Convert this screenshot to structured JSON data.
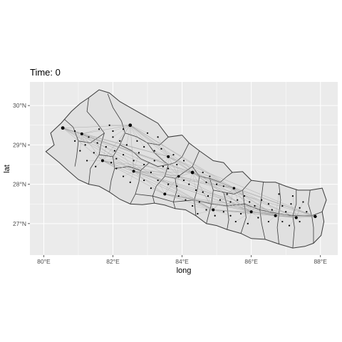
{
  "chart_data": {
    "type": "scatter",
    "title": "Time: 0",
    "xlabel": "long",
    "ylabel": "lat",
    "xlim": [
      79.6,
      88.5
    ],
    "ylim": [
      26.2,
      30.6
    ],
    "x_ticks": [
      80,
      82,
      84,
      86,
      88
    ],
    "x_tick_labels": [
      "80°E",
      "82°E",
      "84°E",
      "86°E",
      "88°E"
    ],
    "y_ticks": [
      27,
      28,
      29,
      30
    ],
    "y_tick_labels": [
      "27°N",
      "28°N",
      "29°N",
      "30°N"
    ],
    "grid": true,
    "legend": "none",
    "colors": {
      "panel": "#ebebeb",
      "grid_major": "#ffffff",
      "region_fill": "#e0e0e0",
      "region_stroke": "#3a3a3a",
      "edges": "#a0a0a0",
      "points": "#000000"
    },
    "country_outline": [
      [
        80.06,
        28.83
      ],
      [
        80.3,
        29.0
      ],
      [
        80.2,
        29.3
      ],
      [
        80.5,
        29.55
      ],
      [
        80.8,
        29.85
      ],
      [
        81.05,
        30.05
      ],
      [
        81.3,
        30.2
      ],
      [
        81.6,
        30.4
      ],
      [
        81.9,
        30.32
      ],
      [
        82.2,
        30.1
      ],
      [
        82.5,
        29.95
      ],
      [
        82.9,
        29.75
      ],
      [
        83.3,
        29.55
      ],
      [
        83.6,
        29.2
      ],
      [
        84.0,
        29.25
      ],
      [
        84.2,
        29.05
      ],
      [
        84.5,
        28.85
      ],
      [
        84.9,
        28.6
      ],
      [
        85.2,
        28.55
      ],
      [
        85.45,
        28.3
      ],
      [
        85.75,
        28.32
      ],
      [
        86.0,
        28.1
      ],
      [
        86.4,
        28.05
      ],
      [
        86.7,
        28.05
      ],
      [
        87.0,
        27.95
      ],
      [
        87.35,
        27.85
      ],
      [
        87.7,
        27.85
      ],
      [
        88.05,
        27.9
      ],
      [
        88.17,
        27.6
      ],
      [
        88.05,
        27.3
      ],
      [
        88.1,
        27.05
      ],
      [
        88.02,
        26.7
      ],
      [
        87.8,
        26.5
      ],
      [
        87.55,
        26.42
      ],
      [
        87.2,
        26.38
      ],
      [
        86.8,
        26.48
      ],
      [
        86.4,
        26.6
      ],
      [
        86.0,
        26.62
      ],
      [
        85.7,
        26.75
      ],
      [
        85.3,
        26.85
      ],
      [
        85.0,
        26.95
      ],
      [
        84.7,
        27.0
      ],
      [
        84.4,
        27.2
      ],
      [
        84.1,
        27.35
      ],
      [
        83.8,
        27.38
      ],
      [
        83.5,
        27.47
      ],
      [
        83.2,
        27.52
      ],
      [
        82.85,
        27.48
      ],
      [
        82.5,
        27.5
      ],
      [
        82.2,
        27.62
      ],
      [
        81.9,
        27.8
      ],
      [
        81.6,
        27.95
      ],
      [
        81.3,
        28.0
      ],
      [
        81.0,
        28.12
      ],
      [
        80.7,
        28.35
      ],
      [
        80.45,
        28.55
      ],
      [
        80.06,
        28.83
      ]
    ],
    "region_borders": [
      [
        [
          80.6,
          29.65
        ],
        [
          80.85,
          29.45
        ],
        [
          81.0,
          29.1
        ],
        [
          80.95,
          28.7
        ],
        [
          80.9,
          28.45
        ]
      ],
      [
        [
          81.3,
          30.2
        ],
        [
          81.25,
          29.85
        ],
        [
          81.5,
          29.6
        ],
        [
          81.75,
          29.3
        ],
        [
          81.65,
          29.0
        ],
        [
          81.6,
          28.75
        ],
        [
          81.35,
          28.4
        ],
        [
          81.3,
          28.0
        ]
      ],
      [
        [
          81.85,
          30.3
        ],
        [
          82.0,
          29.95
        ],
        [
          82.25,
          29.6
        ],
        [
          82.35,
          29.3
        ],
        [
          82.2,
          29.0
        ],
        [
          82.0,
          28.7
        ],
        [
          82.05,
          28.4
        ],
        [
          81.95,
          28.1
        ],
        [
          81.9,
          27.8
        ]
      ],
      [
        [
          82.35,
          29.3
        ],
        [
          82.7,
          29.2
        ],
        [
          83.0,
          29.05
        ],
        [
          83.35,
          29.0
        ],
        [
          83.6,
          29.2
        ]
      ],
      [
        [
          81.0,
          29.1
        ],
        [
          81.35,
          29.05
        ],
        [
          81.75,
          29.3
        ]
      ],
      [
        [
          81.6,
          28.75
        ],
        [
          82.0,
          28.7
        ]
      ],
      [
        [
          82.05,
          28.4
        ],
        [
          82.45,
          28.45
        ],
        [
          82.8,
          28.35
        ],
        [
          83.05,
          28.55
        ],
        [
          83.3,
          28.45
        ],
        [
          83.6,
          28.5
        ]
      ],
      [
        [
          82.2,
          29.0
        ],
        [
          82.55,
          28.85
        ],
        [
          82.8,
          28.65
        ],
        [
          83.05,
          28.55
        ]
      ],
      [
        [
          83.0,
          29.05
        ],
        [
          83.2,
          28.8
        ],
        [
          83.45,
          28.6
        ],
        [
          83.6,
          28.5
        ],
        [
          83.8,
          28.55
        ],
        [
          84.0,
          28.7
        ],
        [
          84.2,
          29.05
        ]
      ],
      [
        [
          82.8,
          28.35
        ],
        [
          82.75,
          28.05
        ],
        [
          82.65,
          27.75
        ],
        [
          82.5,
          27.5
        ]
      ],
      [
        [
          83.6,
          28.5
        ],
        [
          83.5,
          28.2
        ],
        [
          83.25,
          27.95
        ],
        [
          83.15,
          27.7
        ],
        [
          83.2,
          27.52
        ]
      ],
      [
        [
          83.5,
          28.2
        ],
        [
          83.8,
          28.15
        ],
        [
          84.05,
          28.3
        ],
        [
          84.3,
          28.45
        ],
        [
          84.5,
          28.85
        ]
      ],
      [
        [
          83.8,
          28.15
        ],
        [
          83.85,
          27.85
        ],
        [
          83.75,
          27.55
        ],
        [
          83.8,
          27.38
        ]
      ],
      [
        [
          84.3,
          28.45
        ],
        [
          84.5,
          28.2
        ],
        [
          84.45,
          27.9
        ],
        [
          84.35,
          27.6
        ],
        [
          84.4,
          27.2
        ]
      ],
      [
        [
          84.5,
          28.2
        ],
        [
          84.8,
          28.15
        ],
        [
          85.1,
          28.05
        ],
        [
          85.3,
          28.2
        ],
        [
          85.45,
          28.3
        ]
      ],
      [
        [
          84.8,
          28.15
        ],
        [
          84.9,
          27.85
        ],
        [
          84.85,
          27.5
        ],
        [
          84.7,
          27.0
        ]
      ],
      [
        [
          84.9,
          27.85
        ],
        [
          85.2,
          27.8
        ],
        [
          85.5,
          27.75
        ],
        [
          85.75,
          27.85
        ],
        [
          86.0,
          28.1
        ]
      ],
      [
        [
          85.2,
          27.8
        ],
        [
          85.3,
          27.45
        ],
        [
          85.35,
          27.1
        ],
        [
          85.3,
          26.85
        ]
      ],
      [
        [
          85.75,
          27.85
        ],
        [
          85.8,
          27.5
        ],
        [
          85.85,
          27.15
        ],
        [
          85.7,
          26.75
        ]
      ],
      [
        [
          86.35,
          28.05
        ],
        [
          86.3,
          27.7
        ],
        [
          86.25,
          27.35
        ],
        [
          86.3,
          27.0
        ],
        [
          86.4,
          26.6
        ]
      ],
      [
        [
          86.8,
          28.0
        ],
        [
          86.85,
          27.6
        ],
        [
          86.8,
          27.25
        ],
        [
          86.75,
          26.9
        ],
        [
          86.8,
          26.48
        ]
      ],
      [
        [
          87.3,
          27.87
        ],
        [
          87.3,
          27.5
        ],
        [
          87.2,
          27.2
        ],
        [
          87.25,
          26.9
        ],
        [
          87.2,
          26.38
        ]
      ],
      [
        [
          87.7,
          27.85
        ],
        [
          87.65,
          27.5
        ],
        [
          87.75,
          27.2
        ],
        [
          87.8,
          26.9
        ],
        [
          87.8,
          26.5
        ]
      ],
      [
        [
          84.85,
          27.5
        ],
        [
          85.3,
          27.45
        ],
        [
          85.8,
          27.5
        ],
        [
          86.25,
          27.35
        ],
        [
          86.8,
          27.25
        ],
        [
          87.2,
          27.2
        ],
        [
          87.75,
          27.2
        ],
        [
          88.05,
          27.3
        ]
      ],
      [
        [
          82.65,
          27.75
        ],
        [
          83.15,
          27.7
        ],
        [
          83.75,
          27.55
        ],
        [
          84.35,
          27.6
        ],
        [
          84.85,
          27.5
        ]
      ]
    ],
    "hubs": [
      {
        "x": 80.55,
        "y": 29.43,
        "r": 2.4
      },
      {
        "x": 82.5,
        "y": 29.5,
        "r": 2.4
      },
      {
        "x": 81.1,
        "y": 29.28,
        "r": 2.0
      },
      {
        "x": 81.7,
        "y": 28.6,
        "r": 2.0
      },
      {
        "x": 82.6,
        "y": 28.33,
        "r": 2.0
      },
      {
        "x": 83.5,
        "y": 27.75,
        "r": 2.0
      },
      {
        "x": 83.6,
        "y": 28.7,
        "r": 2.0
      },
      {
        "x": 84.3,
        "y": 28.3,
        "r": 2.4
      },
      {
        "x": 84.9,
        "y": 27.35,
        "r": 2.0
      },
      {
        "x": 86.0,
        "y": 27.3,
        "r": 2.0
      },
      {
        "x": 86.7,
        "y": 27.2,
        "r": 2.0
      },
      {
        "x": 87.3,
        "y": 27.15,
        "r": 2.0
      },
      {
        "x": 87.85,
        "y": 27.18,
        "r": 2.2
      },
      {
        "x": 85.5,
        "y": 27.9,
        "r": 1.8
      },
      {
        "x": 83.9,
        "y": 28.2,
        "r": 1.8
      }
    ],
    "edges": [
      [
        0,
        2
      ],
      [
        0,
        1
      ],
      [
        0,
        3
      ],
      [
        0,
        4
      ],
      [
        0,
        6
      ],
      [
        0,
        7
      ],
      [
        0,
        13
      ],
      [
        0,
        8
      ],
      [
        0,
        9
      ],
      [
        1,
        2
      ],
      [
        1,
        3
      ],
      [
        1,
        4
      ],
      [
        1,
        6
      ],
      [
        1,
        7
      ],
      [
        1,
        14
      ],
      [
        1,
        13
      ],
      [
        1,
        9
      ],
      [
        1,
        10
      ],
      [
        2,
        3
      ],
      [
        2,
        4
      ],
      [
        2,
        7
      ],
      [
        2,
        6
      ],
      [
        2,
        14
      ],
      [
        2,
        8
      ],
      [
        3,
        4
      ],
      [
        3,
        5
      ],
      [
        3,
        7
      ],
      [
        3,
        14
      ],
      [
        3,
        8
      ],
      [
        3,
        9
      ],
      [
        4,
        5
      ],
      [
        4,
        7
      ],
      [
        4,
        14
      ],
      [
        4,
        8
      ],
      [
        4,
        13
      ],
      [
        4,
        9
      ],
      [
        4,
        10
      ],
      [
        4,
        11
      ],
      [
        5,
        8
      ],
      [
        5,
        14
      ],
      [
        5,
        9
      ],
      [
        5,
        10
      ],
      [
        5,
        11
      ],
      [
        5,
        12
      ],
      [
        6,
        7
      ],
      [
        6,
        14
      ],
      [
        6,
        13
      ],
      [
        6,
        9
      ],
      [
        6,
        12
      ],
      [
        7,
        14
      ],
      [
        7,
        13
      ],
      [
        7,
        8
      ],
      [
        7,
        9
      ],
      [
        7,
        10
      ],
      [
        7,
        11
      ],
      [
        7,
        12
      ],
      [
        8,
        9
      ],
      [
        8,
        10
      ],
      [
        8,
        11
      ],
      [
        8,
        12
      ],
      [
        8,
        13
      ],
      [
        9,
        10
      ],
      [
        9,
        11
      ],
      [
        9,
        12
      ],
      [
        9,
        13
      ],
      [
        10,
        11
      ],
      [
        10,
        12
      ],
      [
        10,
        13
      ],
      [
        11,
        12
      ],
      [
        11,
        13
      ],
      [
        12,
        13
      ],
      [
        13,
        14
      ],
      [
        14,
        9
      ],
      [
        14,
        12
      ]
    ],
    "points": [
      [
        80.9,
        29.35
      ],
      [
        81.3,
        29.2
      ],
      [
        81.55,
        29.05
      ],
      [
        81.8,
        28.95
      ],
      [
        82.05,
        28.85
      ],
      [
        82.3,
        28.75
      ],
      [
        81.2,
        29.0
      ],
      [
        81.45,
        28.8
      ],
      [
        82.0,
        29.2
      ],
      [
        82.2,
        29.1
      ],
      [
        82.4,
        29.0
      ],
      [
        82.7,
        29.1
      ],
      [
        82.9,
        28.95
      ],
      [
        83.2,
        28.85
      ],
      [
        83.4,
        28.9
      ],
      [
        83.0,
        29.3
      ],
      [
        83.3,
        29.2
      ],
      [
        82.0,
        29.35
      ],
      [
        81.9,
        29.5
      ],
      [
        81.6,
        29.4
      ],
      [
        82.3,
        29.4
      ],
      [
        82.6,
        28.6
      ],
      [
        82.9,
        28.5
      ],
      [
        83.1,
        28.3
      ],
      [
        83.3,
        28.1
      ],
      [
        83.6,
        28.0
      ],
      [
        83.85,
        27.95
      ],
      [
        84.05,
        28.1
      ],
      [
        84.2,
        28.0
      ],
      [
        84.4,
        27.85
      ],
      [
        84.6,
        27.8
      ],
      [
        84.75,
        27.7
      ],
      [
        84.5,
        27.55
      ],
      [
        84.3,
        27.45
      ],
      [
        84.1,
        27.6
      ],
      [
        83.9,
        27.7
      ],
      [
        83.1,
        27.9
      ],
      [
        82.9,
        28.1
      ],
      [
        82.3,
        28.2
      ],
      [
        82.1,
        28.4
      ],
      [
        81.95,
        28.55
      ],
      [
        82.1,
        28.65
      ],
      [
        84.6,
        28.3
      ],
      [
        84.8,
        28.2
      ],
      [
        85.0,
        28.0
      ],
      [
        85.2,
        27.95
      ],
      [
        85.3,
        27.75
      ],
      [
        85.1,
        27.6
      ],
      [
        85.4,
        27.55
      ],
      [
        85.6,
        27.6
      ],
      [
        85.8,
        27.7
      ],
      [
        85.95,
        27.55
      ],
      [
        86.1,
        27.45
      ],
      [
        86.3,
        27.6
      ],
      [
        86.5,
        27.5
      ],
      [
        86.6,
        27.35
      ],
      [
        86.9,
        27.45
      ],
      [
        87.0,
        27.3
      ],
      [
        87.15,
        27.5
      ],
      [
        87.4,
        27.4
      ],
      [
        87.6,
        27.3
      ],
      [
        87.5,
        27.55
      ],
      [
        87.2,
        27.7
      ],
      [
        86.8,
        27.75
      ],
      [
        85.7,
        27.25
      ],
      [
        85.4,
        27.2
      ],
      [
        85.2,
        27.3
      ],
      [
        86.2,
        27.15
      ],
      [
        86.5,
        27.05
      ],
      [
        86.9,
        27.05
      ],
      [
        87.1,
        26.95
      ],
      [
        87.4,
        27.05
      ],
      [
        85.9,
        27.0
      ],
      [
        85.55,
        27.05
      ],
      [
        84.95,
        27.2
      ],
      [
        84.7,
        27.35
      ],
      [
        84.45,
        27.25
      ],
      [
        83.6,
        28.4
      ],
      [
        83.85,
        28.5
      ],
      [
        84.05,
        28.6
      ],
      [
        83.75,
        28.75
      ],
      [
        83.45,
        28.45
      ],
      [
        83.2,
        28.6
      ],
      [
        82.75,
        28.8
      ],
      [
        81.25,
        28.6
      ],
      [
        81.5,
        28.45
      ],
      [
        81.05,
        28.85
      ],
      [
        80.9,
        29.1
      ],
      [
        82.5,
        28.05
      ],
      [
        84.7,
        28.05
      ]
    ]
  }
}
